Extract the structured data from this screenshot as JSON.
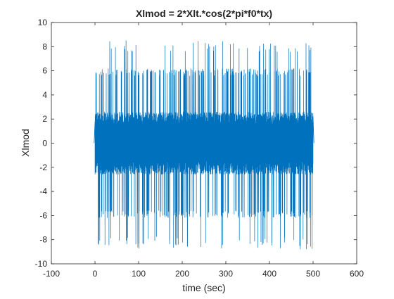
{
  "chart_data": {
    "type": "line",
    "title": "Xlmod = 2*Xlt.*cos(2*pi*f0*tx)",
    "xlabel": "time (sec)",
    "ylabel": "Xlmod",
    "xlim": [
      -100,
      600
    ],
    "ylim": [
      -10,
      10
    ],
    "xticks": [
      -100,
      0,
      100,
      200,
      300,
      400,
      500,
      600
    ],
    "yticks": [
      -10,
      -8,
      -6,
      -4,
      -2,
      0,
      2,
      4,
      6,
      8,
      10
    ],
    "x_tick_labels": [
      "-100",
      "0",
      "100",
      "200",
      "300",
      "400",
      "500",
      "600"
    ],
    "y_tick_labels": [
      "-10",
      "-8",
      "-6",
      "-4",
      "-2",
      "0",
      "2",
      "4",
      "6",
      "8",
      "10"
    ],
    "grid": false,
    "line_color": "#0072BD",
    "series": [
      {
        "x_range": [
          0,
          500
        ],
        "description_levels": {
          "dense_band": [
            -2.6,
            2.6
          ],
          "frequent_spikes": [
            -6.2,
            6.2
          ],
          "occasional_peaks": [
            -8.8,
            8.6
          ]
        }
      }
    ]
  }
}
